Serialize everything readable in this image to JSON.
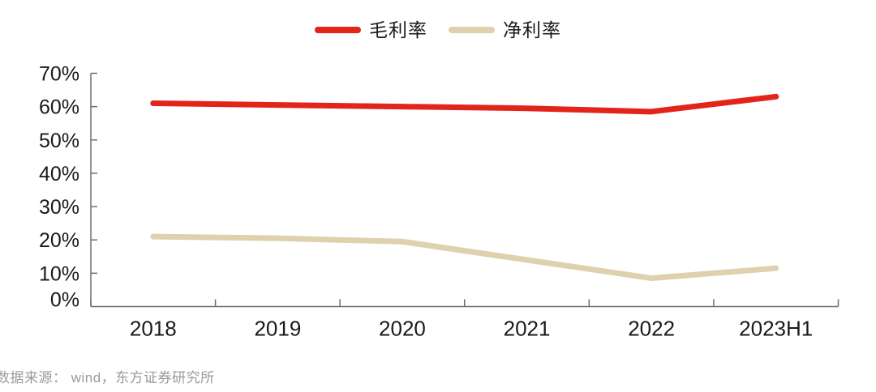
{
  "chart_data": {
    "type": "line",
    "title": "",
    "categories": [
      "2018",
      "2019",
      "2020",
      "2021",
      "2022",
      "2023H1"
    ],
    "series": [
      {
        "name": "毛利率",
        "color": "#e2241b",
        "values": [
          61,
          60.5,
          60,
          59.5,
          58.5,
          63
        ]
      },
      {
        "name": "净利率",
        "color": "#ddd1ae",
        "values": [
          21,
          20.5,
          19.5,
          14,
          8.5,
          11.5
        ]
      }
    ],
    "xlabel": "",
    "ylabel": "",
    "ylim": [
      0,
      70
    ],
    "ytick_step": 10,
    "ytick_suffix": "%",
    "ytick_labels": [
      "0%",
      "10%",
      "20%",
      "30%",
      "40%",
      "50%",
      "60%",
      "70%"
    ],
    "grid": false,
    "legend_position": "top-center",
    "line_width": 7
  },
  "source_note": "数据来源： wind，东方证券研究所",
  "colors": {
    "background": "#ffffff",
    "axis": "#6f6f6f",
    "tick_label": "#1a1a1a",
    "source_text": "#9a9a9a"
  }
}
